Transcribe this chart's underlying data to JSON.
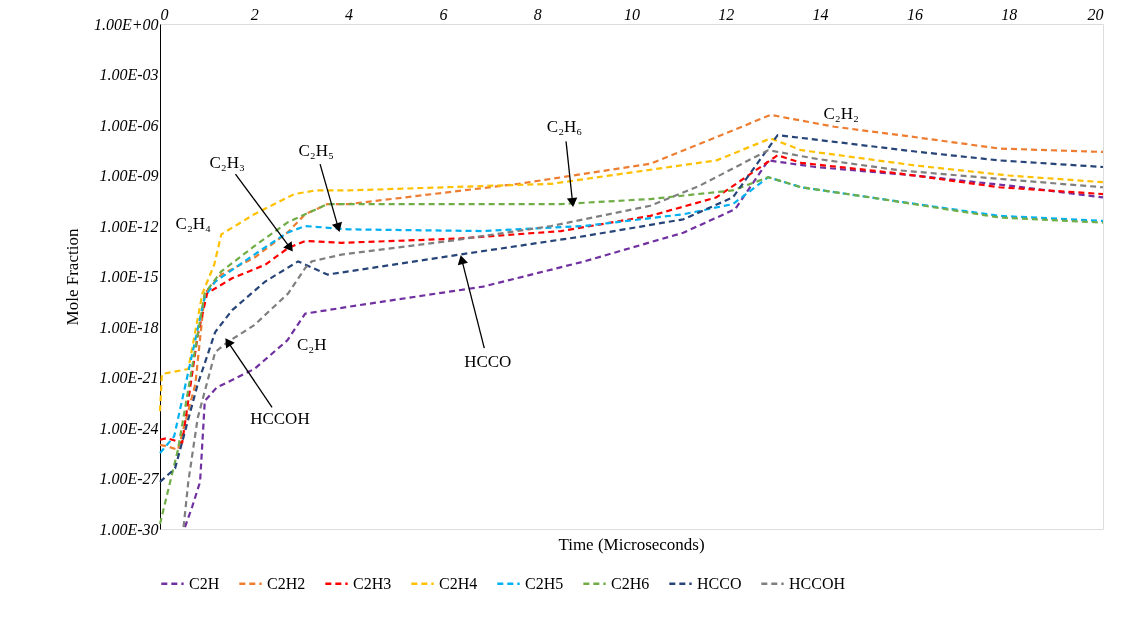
{
  "chart_data": {
    "type": "line",
    "xlabel": "Time (Microseconds)",
    "ylabel": "Mole Fraction",
    "log": "y",
    "grid": false,
    "legend": "bottom",
    "line_style": "dashed",
    "marker": "none",
    "xlim": [
      0,
      20
    ],
    "xticks": [
      0,
      2,
      4,
      6,
      8,
      10,
      12,
      14,
      16,
      18,
      20
    ],
    "ylim": [
      1e-30,
      1
    ],
    "yticks": [
      {
        "value": 1,
        "label": "1.00E+00"
      },
      {
        "value": 0.001,
        "label": "1.00E-03"
      },
      {
        "value": 1e-06,
        "label": "1.00E-06"
      },
      {
        "value": 1e-09,
        "label": "1.00E-09"
      },
      {
        "value": 1e-12,
        "label": "1.00E-12"
      },
      {
        "value": 1e-15,
        "label": "1.00E-15"
      },
      {
        "value": 1e-18,
        "label": "1.00E-18"
      },
      {
        "value": 1e-21,
        "label": "1.00E-21"
      },
      {
        "value": 1e-24,
        "label": "1.00E-24"
      },
      {
        "value": 1e-27,
        "label": "1.00E-27"
      },
      {
        "value": 1e-30,
        "label": "1.00E-30"
      }
    ],
    "series": [
      {
        "name": "C2H",
        "color": "#7030a0",
        "x": [
          0.53,
          0.68,
          0.85,
          0.95,
          1.2,
          2.0,
          2.7,
          3.08,
          3.55,
          4.0,
          6.85,
          9.0,
          11.1,
          12.2,
          12.9,
          13.9,
          16,
          18,
          20
        ],
        "values": [
          1.3e-30,
          2e-29,
          6.3e-28,
          4e-23,
          2.5e-22,
          3.2e-21,
          1.6e-19,
          6.3e-18,
          1e-17,
          1.6e-17,
          2.5e-16,
          7.9e-15,
          4e-13,
          1e-11,
          7.9e-09,
          3.2e-09,
          1e-09,
          2.5e-10,
          5e-11
        ]
      },
      {
        "name": "C2H2",
        "color": "#ed7d31",
        "x": [
          0,
          0.17,
          0.38,
          0.75,
          0.95,
          1.3,
          2.0,
          2.7,
          3.08,
          3.55,
          4.0,
          7.6,
          10.4,
          12,
          12.95,
          14.3,
          15.7,
          17.8,
          20
        ],
        "values": [
          1e-25,
          7.9e-26,
          5e-26,
          4e-22,
          1e-16,
          1.3e-15,
          1.3e-14,
          4e-13,
          5e-12,
          2e-11,
          2e-11,
          3.2e-10,
          5e-09,
          3.2e-07,
          4e-06,
          7.9e-07,
          2.5e-07,
          4e-08,
          2.5e-08
        ]
      },
      {
        "name": "C2H3",
        "color": "#ff0000",
        "x": [
          0,
          0.15,
          0.47,
          0.8,
          1.0,
          1.53,
          2.23,
          2.72,
          3.08,
          3.85,
          6.35,
          8.5,
          10.4,
          11.8,
          13.1,
          13.6,
          15.7,
          17.8,
          20
        ],
        "values": [
          2e-25,
          2.5e-25,
          1.3e-25,
          3.2e-19,
          1e-16,
          7.9e-16,
          5e-15,
          5e-14,
          1.3e-13,
          1e-13,
          1.8e-13,
          5e-13,
          4e-12,
          5e-11,
          1.6e-08,
          5.6e-09,
          1.3e-09,
          2e-10,
          7.9e-11
        ]
      },
      {
        "name": "C2H4",
        "color": "#ffc000",
        "x": [
          0,
          0.04,
          0.6,
          0.9,
          1.15,
          1.3,
          2.0,
          2.85,
          3.3,
          4.0,
          8.3,
          11.8,
          12.95,
          13.6,
          16,
          18,
          20
        ],
        "values": [
          1e-23,
          1.6e-21,
          3.2e-21,
          1e-16,
          5e-15,
          3.2e-13,
          5e-12,
          7.9e-11,
          1.3e-10,
          1.3e-10,
          3.2e-10,
          7.9e-09,
          1.6e-07,
          3.2e-08,
          4e-09,
          1e-09,
          4e-10
        ]
      },
      {
        "name": "C2H5",
        "color": "#00b0f0",
        "x": [
          0,
          0.3,
          0.95,
          1.17,
          2.0,
          2.7,
          3.08,
          4.0,
          6.85,
          9.0,
          11.1,
          12.15,
          12.9,
          13.6,
          15.3,
          17.8,
          20
        ],
        "values": [
          3.2e-26,
          3.2e-25,
          6.3e-17,
          5e-16,
          2e-14,
          4e-13,
          1e-12,
          6.3e-13,
          5e-13,
          1e-12,
          5e-12,
          2e-11,
          7.9e-10,
          2e-10,
          4e-11,
          4e-12,
          2e-12
        ]
      },
      {
        "name": "C2H6",
        "color": "#70ad47",
        "x": [
          0,
          0.38,
          0.95,
          1.3,
          2.0,
          2.7,
          3.08,
          3.55,
          8.5,
          10.4,
          12.15,
          12.9,
          13.6,
          15.3,
          17.8,
          20
        ],
        "values": [
          2e-30,
          5e-26,
          1e-16,
          2e-15,
          6.3e-14,
          1.6e-12,
          5e-12,
          2e-11,
          2e-11,
          4e-11,
          1.3e-10,
          7.9e-10,
          2e-10,
          4e-11,
          3.2e-12,
          1.6e-12
        ]
      },
      {
        "name": "HCCO",
        "color": "#264478",
        "x": [
          0,
          0.32,
          0.8,
          1.17,
          1.53,
          2.23,
          2.93,
          3.55,
          4.0,
          6.35,
          9.0,
          11.1,
          12.15,
          13.1,
          14.3,
          16.1,
          17.8,
          20
        ],
        "values": [
          6.3e-28,
          4e-27,
          4e-22,
          5e-19,
          1e-17,
          5e-16,
          7.9e-15,
          1.3e-15,
          2e-15,
          2e-14,
          2.5e-13,
          2.5e-12,
          5e-11,
          2.5e-07,
          1e-07,
          2.5e-08,
          7.9e-09,
          3.2e-09
        ]
      },
      {
        "name": "HCCOH",
        "color": "#7f7f7f",
        "x": [
          0.5,
          0.6,
          0.8,
          1.17,
          1.44,
          2.0,
          2.72,
          3.08,
          3.22,
          3.85,
          6.15,
          8.3,
          10.4,
          11.45,
          12.9,
          13.9,
          15.7,
          17.8,
          20
        ],
        "values": [
          1.3e-30,
          6.3e-28,
          4e-24,
          3.2e-20,
          1.3e-19,
          1.3e-18,
          1e-16,
          3.2e-15,
          7.9e-15,
          2e-14,
          1.3e-13,
          1e-12,
          1.6e-11,
          2.5e-10,
          3.2e-08,
          1e-08,
          2e-09,
          6.3e-10,
          2e-10
        ]
      }
    ],
    "annotations": [
      {
        "text": "C₂H₄",
        "x": 1.3,
        "y": 3.2e-13
      },
      {
        "text": "C₂H₃",
        "x": 2.76,
        "y": 5e-14
      },
      {
        "text": "C₂H₅",
        "x": 3.78,
        "y": 8e-13
      },
      {
        "text": "C₂H₆",
        "x": 8.75,
        "y": 2.5e-11
      },
      {
        "text": "C₂H₂",
        "x": 13.6,
        "y": 2.2e-06
      },
      {
        "text": "C₂H",
        "x": 2.75,
        "y": 8e-19
      },
      {
        "text": "HCCOH",
        "x": 1.44,
        "y": 1.3e-19
      },
      {
        "text": "HCCO",
        "x": 6.4,
        "y": 1e-14
      }
    ]
  }
}
